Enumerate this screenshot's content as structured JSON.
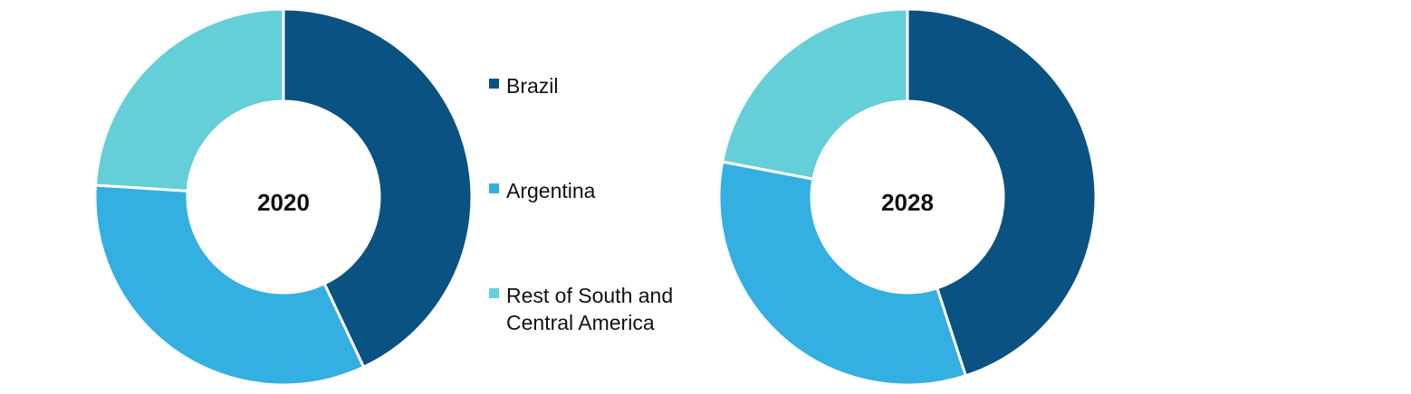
{
  "chart_data": [
    {
      "type": "pie",
      "title": "2020",
      "categories": [
        "Brazil",
        "Argentina",
        "Rest of South and Central America"
      ],
      "values": [
        43,
        33,
        24
      ],
      "colors": [
        "#0A5281",
        "#34AFE1",
        "#64CFD9"
      ]
    },
    {
      "type": "pie",
      "title": "2028",
      "categories": [
        "Brazil",
        "Argentina",
        "Rest of South and Central America"
      ],
      "values": [
        45,
        33,
        22
      ],
      "colors": [
        "#0A5281",
        "#34AFE1",
        "#64CFD9"
      ]
    }
  ],
  "legend": {
    "items": [
      {
        "label": "Brazil",
        "color": "#0A5281"
      },
      {
        "label": "Argentina",
        "color": "#34AFE1"
      },
      {
        "label": "Rest of South and Central America",
        "color": "#64CFD9"
      }
    ]
  }
}
